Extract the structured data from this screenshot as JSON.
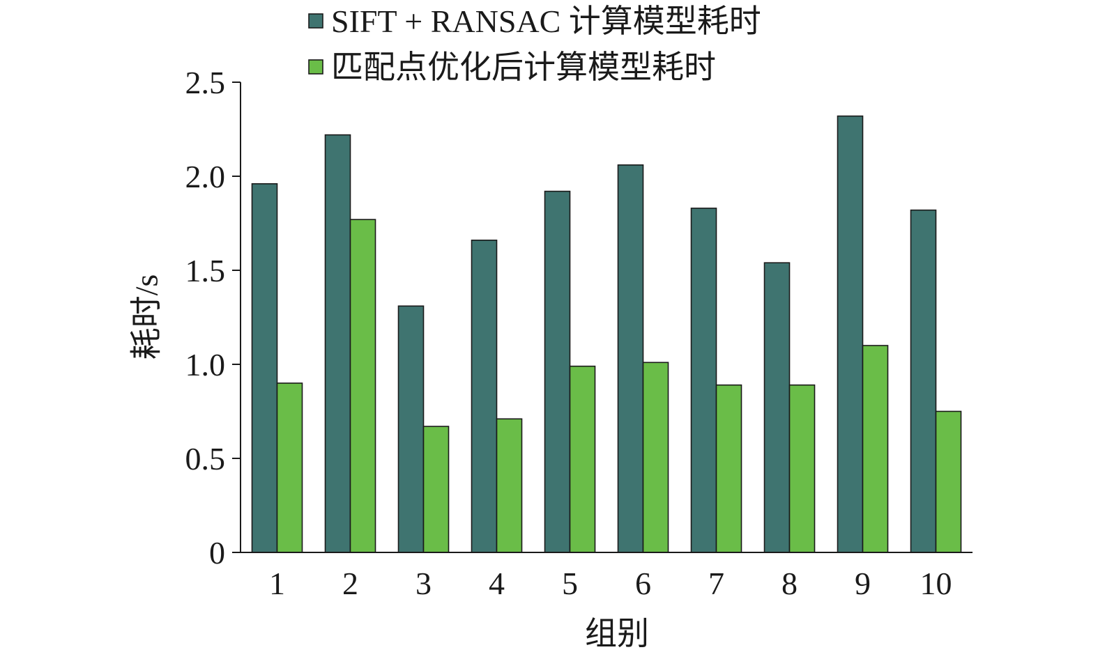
{
  "chart_data": {
    "type": "bar",
    "categories": [
      "1",
      "2",
      "3",
      "4",
      "5",
      "6",
      "7",
      "8",
      "9",
      "10"
    ],
    "series": [
      {
        "name": "SIFT + RANSAC 计算模型耗时",
        "color": "#3f7470",
        "values": [
          1.96,
          2.22,
          1.31,
          1.66,
          1.92,
          2.06,
          1.83,
          1.54,
          2.32,
          1.82
        ]
      },
      {
        "name": "匹配点优化后计算模型耗时",
        "color": "#6abd48",
        "values": [
          0.9,
          1.77,
          0.67,
          0.71,
          0.99,
          1.01,
          0.89,
          0.89,
          1.1,
          0.75
        ]
      }
    ],
    "xlabel": "组别",
    "ylabel": "耗时/s",
    "ylim": [
      0,
      2.5
    ],
    "yticks": [
      "0",
      "0.5",
      "1.0",
      "1.5",
      "2.0",
      "2.5"
    ],
    "grid": false,
    "legend_position": "top"
  }
}
